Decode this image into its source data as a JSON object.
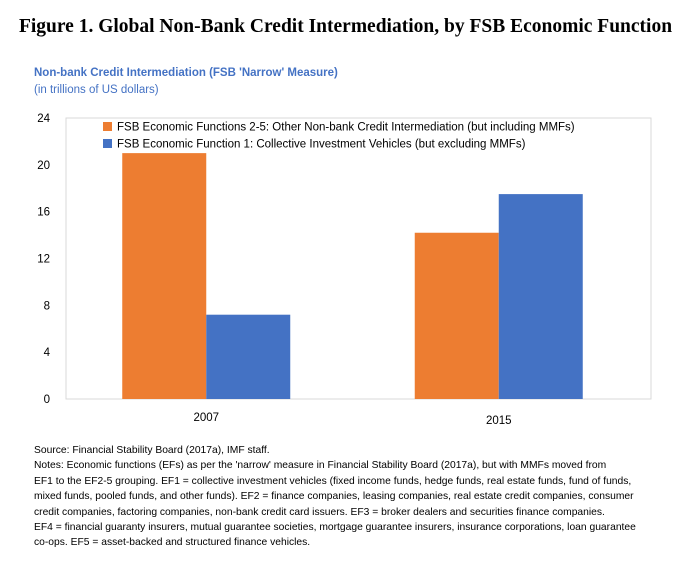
{
  "figure_title": "Figure 1. Global Non-Bank Credit Intermediation, by FSB Economic Function",
  "chart_data": {
    "type": "bar",
    "title": "Non-bank Credit Intermediation (FSB 'Narrow' Measure)",
    "subtitle": "(in trillions of US dollars)",
    "categories": [
      "2007",
      "2015"
    ],
    "series": [
      {
        "name": "FSB Economic Functions 2-5: Other Non-bank Credit Intermediation (but including MMFs)",
        "color": "#ED7D31",
        "values": [
          21.0,
          14.2
        ]
      },
      {
        "name": "FSB Economic Function 1: Collective Investment Vehicles (but excluding MMFs)",
        "color": "#4472C4",
        "values": [
          7.2,
          17.5
        ]
      }
    ],
    "xlabel": "",
    "ylabel": "",
    "ylim": [
      0,
      24
    ],
    "yticks": [
      0,
      4,
      8,
      12,
      16,
      20,
      24
    ],
    "grid": false,
    "legend_position": "top-left"
  },
  "source": "Source: Financial Stability Board (2017a), IMF staff.",
  "notes_lines": [
    "Notes: Economic functions (EFs) as per the 'narrow' measure in Financial Stability Board (2017a), but with MMFs moved from",
    "EF1 to the EF2-5 grouping. EF1 = collective investment vehicles (fixed income funds, hedge funds, real estate funds, fund of funds,",
    "mixed funds, pooled funds, and other funds). EF2 = finance companies, leasing companies, real estate credit companies, consumer",
    "credit companies, factoring companies, non-bank credit card issuers.  EF3 = broker dealers and securities finance companies.",
    "EF4 = financial guaranty insurers, mutual guarantee societies, mortgage guarantee insurers, insurance corporations, loan guarantee",
    "co-ops.  EF5 = asset-backed and structured finance vehicles."
  ]
}
